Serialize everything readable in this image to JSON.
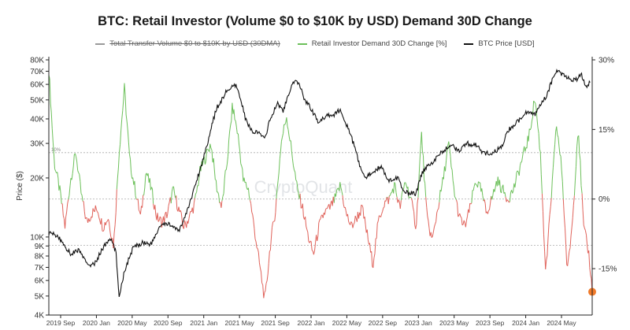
{
  "chart_data": {
    "type": "line",
    "title": "BTC: Retail Investor (Volume $0 to $10K by USD) Demand 30D Change",
    "ylabel": "Price ($)",
    "watermark": "CryptoQuant",
    "legend": [
      {
        "label": "Total Transfer Volume $0 to $10K by USD (30DMA)",
        "color": "#9a9a9a",
        "struck": true
      },
      {
        "label": "Retail Investor Demand 30D Change [%]",
        "color": "#6cc05a"
      },
      {
        "label": "BTC Price [USD]",
        "color": "#111111"
      }
    ],
    "left_axis": {
      "scale": "log",
      "range": [
        4000,
        80000
      ],
      "ticks": [
        {
          "value": 4000,
          "label": "4K"
        },
        {
          "value": 5000,
          "label": "5K"
        },
        {
          "value": 6000,
          "label": "6K"
        },
        {
          "value": 7000,
          "label": "7K"
        },
        {
          "value": 8000,
          "label": "8K"
        },
        {
          "value": 9000,
          "label": "9K"
        },
        {
          "value": 10000,
          "label": "10K"
        },
        {
          "value": 20000,
          "label": "20K"
        },
        {
          "value": 30000,
          "label": "30K"
        },
        {
          "value": 40000,
          "label": "40K"
        },
        {
          "value": 50000,
          "label": "50K"
        },
        {
          "value": 60000,
          "label": "60K"
        },
        {
          "value": 70000,
          "label": "70K"
        },
        {
          "value": 80000,
          "label": "80K"
        }
      ]
    },
    "right_axis": {
      "scale": "linear",
      "range": [
        -25,
        30
      ],
      "ticks": [
        {
          "value": 30,
          "label": "30%"
        },
        {
          "value": 15,
          "label": "15%"
        },
        {
          "value": 0,
          "label": "0%"
        },
        {
          "value": -15,
          "label": "-15%"
        }
      ]
    },
    "reference_lines": [
      {
        "value": 10,
        "label": "10%"
      },
      {
        "value": 0,
        "label": ""
      },
      {
        "value": -10,
        "label": ""
      }
    ],
    "x_ticks": [
      "2019 Sep",
      "2020 Jan",
      "2020 May",
      "2020 Sep",
      "2021 Jan",
      "2021 May",
      "2021 Sep",
      "2022 Jan",
      "2022 May",
      "2022 Sep",
      "2023 Jan",
      "2023 May",
      "2023 Sep",
      "2024 Jan",
      "2024 May"
    ],
    "x_range": [
      2019.55,
      2024.58
    ],
    "btc_price": {
      "x": [
        2019.55,
        2019.62,
        2019.67,
        2019.75,
        2019.83,
        2019.9,
        2019.97,
        2020.05,
        2020.12,
        2020.17,
        2020.2,
        2020.25,
        2020.33,
        2020.42,
        2020.5,
        2020.58,
        2020.67,
        2020.75,
        2020.83,
        2020.9,
        2020.97,
        2021.03,
        2021.1,
        2021.15,
        2021.2,
        2021.28,
        2021.33,
        2021.37,
        2021.42,
        2021.48,
        2021.55,
        2021.6,
        2021.67,
        2021.72,
        2021.78,
        2021.82,
        2021.87,
        2021.92,
        2021.97,
        2022.05,
        2022.12,
        2022.2,
        2022.25,
        2022.3,
        2022.37,
        2022.42,
        2022.47,
        2022.55,
        2022.62,
        2022.7,
        2022.78,
        2022.83,
        2022.87,
        2022.95,
        2023.0,
        2023.05,
        2023.12,
        2023.2,
        2023.28,
        2023.35,
        2023.42,
        2023.5,
        2023.58,
        2023.67,
        2023.75,
        2023.8,
        2023.87,
        2023.95,
        2024.0,
        2024.05,
        2024.1,
        2024.15,
        2024.2,
        2024.25,
        2024.3,
        2024.35,
        2024.42,
        2024.48,
        2024.53,
        2024.56
      ],
      "y": [
        10500,
        10200,
        9500,
        8200,
        8600,
        7300,
        7200,
        8800,
        9800,
        8500,
        5000,
        6700,
        8800,
        9400,
        9200,
        11400,
        11700,
        10600,
        13500,
        18000,
        24000,
        32000,
        45000,
        50000,
        56000,
        59000,
        50000,
        40000,
        35000,
        34000,
        32000,
        40000,
        48000,
        44000,
        55000,
        62000,
        60000,
        50000,
        46000,
        38000,
        42000,
        42000,
        45000,
        38000,
        30000,
        24000,
        20000,
        21500,
        23000,
        19500,
        20000,
        17000,
        16800,
        16600,
        21000,
        23000,
        24500,
        27500,
        29500,
        27500,
        30000,
        29500,
        26500,
        27000,
        29000,
        35000,
        37500,
        42500,
        44000,
        42000,
        48000,
        51000,
        61000,
        70000,
        68000,
        65000,
        63000,
        67000,
        58000,
        62500
      ]
    },
    "demand_change": {
      "x": [
        2019.55,
        2019.6,
        2019.65,
        2019.7,
        2019.75,
        2019.8,
        2019.85,
        2019.9,
        2019.95,
        2020.0,
        2020.05,
        2020.1,
        2020.15,
        2020.2,
        2020.25,
        2020.3,
        2020.35,
        2020.4,
        2020.45,
        2020.5,
        2020.55,
        2020.6,
        2020.65,
        2020.7,
        2020.75,
        2020.8,
        2020.85,
        2020.9,
        2020.95,
        2021.0,
        2021.05,
        2021.1,
        2021.15,
        2021.2,
        2021.25,
        2021.3,
        2021.35,
        2021.4,
        2021.45,
        2021.5,
        2021.55,
        2021.6,
        2021.65,
        2021.7,
        2021.75,
        2021.8,
        2021.85,
        2021.9,
        2021.95,
        2022.0,
        2022.05,
        2022.1,
        2022.15,
        2022.2,
        2022.25,
        2022.3,
        2022.35,
        2022.4,
        2022.45,
        2022.5,
        2022.55,
        2022.6,
        2022.65,
        2022.7,
        2022.75,
        2022.8,
        2022.85,
        2022.9,
        2022.95,
        2023.0,
        2023.05,
        2023.1,
        2023.15,
        2023.2,
        2023.25,
        2023.3,
        2023.35,
        2023.4,
        2023.45,
        2023.5,
        2023.55,
        2023.6,
        2023.65,
        2023.7,
        2023.75,
        2023.8,
        2023.85,
        2023.9,
        2023.95,
        2024.0,
        2024.05,
        2024.1,
        2024.15,
        2024.2,
        2024.25,
        2024.3,
        2024.35,
        2024.4,
        2024.45,
        2024.5,
        2024.55,
        2024.58
      ],
      "y": [
        28,
        8,
        2,
        -6,
        4,
        10,
        1,
        -5,
        -3,
        -2,
        -6,
        -4,
        -10,
        10,
        24,
        8,
        2,
        -4,
        6,
        2,
        -4,
        -5,
        -3,
        2,
        -2,
        -6,
        -4,
        -1,
        6,
        9,
        12,
        3,
        -2,
        8,
        20,
        14,
        4,
        2,
        -6,
        -14,
        -22,
        -10,
        -2,
        12,
        18,
        10,
        2,
        -2,
        -8,
        -12,
        -6,
        -3,
        -2,
        0,
        3,
        -3,
        -6,
        -4,
        -2,
        -8,
        -14,
        -5,
        -1,
        0,
        3,
        -2,
        4,
        0,
        -6,
        14,
        -4,
        -9,
        -2,
        4,
        12,
        2,
        -4,
        -6,
        -2,
        4,
        2,
        -3,
        0,
        4,
        2,
        0,
        2,
        6,
        10,
        14,
        22,
        10,
        -16,
        0,
        16,
        6,
        -16,
        -4,
        16,
        -6,
        -12,
        -20
      ]
    },
    "latest_marker": {
      "x": 2024.58,
      "value": -20,
      "color": "#f07a2a"
    }
  }
}
